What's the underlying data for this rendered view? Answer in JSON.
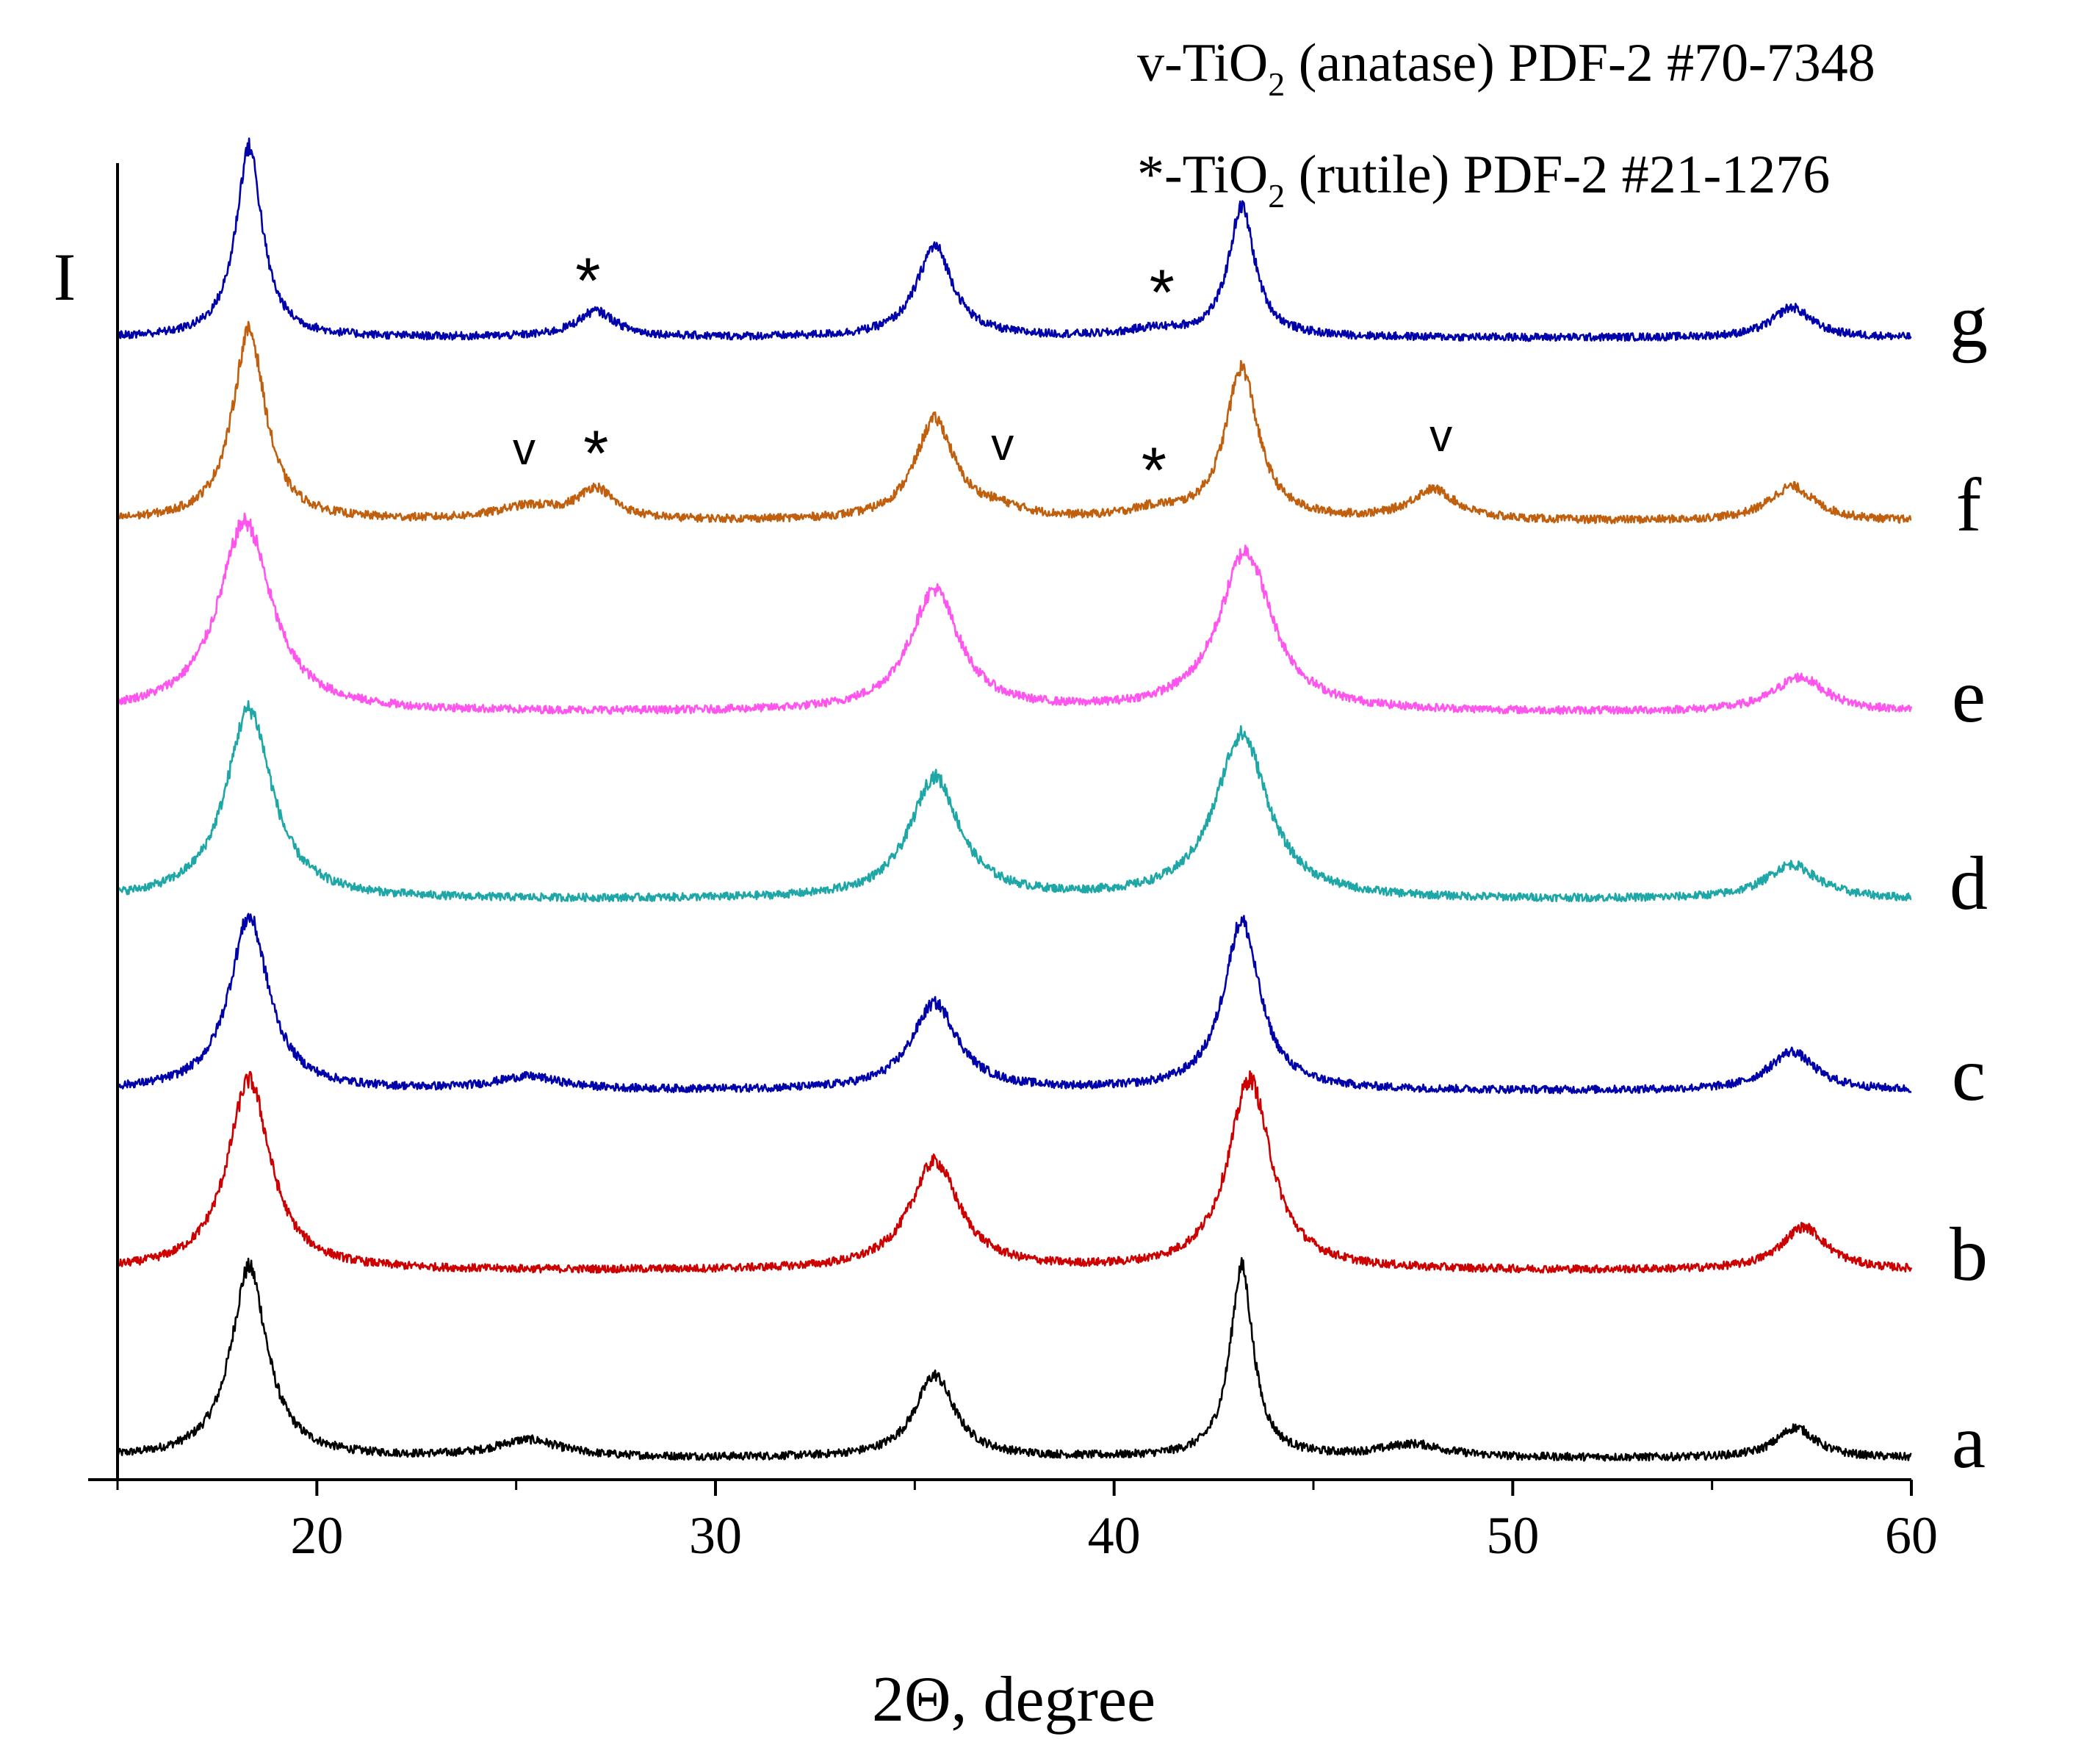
{
  "chart_data": {
    "type": "line",
    "title": "",
    "xlabel": "2Θ, degree",
    "ylabel": "I",
    "xlim": [
      15,
      60
    ],
    "xticks": [
      20,
      30,
      40,
      50,
      60
    ],
    "grid": false,
    "legend_lines": [
      {
        "prefix": "v-TiO",
        "sub": "2",
        "suffix": " (anatase) PDF-2 #70-7348"
      },
      {
        "prefix": "*-TiO",
        "sub": "2",
        "suffix": " (rutile) PDF-2 #21-1276"
      }
    ],
    "series": [
      {
        "name": "a",
        "color": "#000000",
        "baseline": 1.0,
        "noise": 0.045,
        "peaks": [
          [
            18.3,
            2.2,
            0.55
          ],
          [
            25.3,
            0.2,
            1.0
          ],
          [
            35.5,
            0.95,
            0.6
          ],
          [
            43.2,
            2.2,
            0.35
          ],
          [
            47.5,
            0.15,
            1.0
          ],
          [
            57.1,
            0.35,
            0.6
          ]
        ]
      },
      {
        "name": "b",
        "color": "#cc0000",
        "baseline": 1.0,
        "noise": 0.045,
        "peaks": [
          [
            18.3,
            2.2,
            0.65
          ],
          [
            35.5,
            1.25,
            0.75
          ],
          [
            43.4,
            2.2,
            0.65
          ],
          [
            57.3,
            0.5,
            0.7
          ]
        ]
      },
      {
        "name": "c",
        "color": "#0000aa",
        "baseline": 1.0,
        "noise": 0.045,
        "peaks": [
          [
            18.3,
            2.0,
            0.6
          ],
          [
            25.3,
            0.15,
            1.0
          ],
          [
            35.5,
            1.0,
            0.7
          ],
          [
            43.2,
            1.95,
            0.55
          ],
          [
            57.0,
            0.45,
            0.7
          ]
        ]
      },
      {
        "name": "d",
        "color": "#1fa7a7",
        "baseline": 1.0,
        "noise": 0.045,
        "peaks": [
          [
            18.3,
            2.2,
            0.7
          ],
          [
            35.5,
            1.4,
            0.75
          ],
          [
            43.2,
            1.9,
            0.8
          ],
          [
            57.0,
            0.4,
            0.8
          ]
        ]
      },
      {
        "name": "e",
        "color": "#ff55ee",
        "baseline": 1.0,
        "noise": 0.045,
        "peaks": [
          [
            18.2,
            2.2,
            0.8
          ],
          [
            35.5,
            1.4,
            0.75
          ],
          [
            43.3,
            1.85,
            0.8
          ],
          [
            57.2,
            0.4,
            0.8
          ]
        ]
      },
      {
        "name": "f",
        "color": "#c0600f",
        "baseline": 1.0,
        "noise": 0.045,
        "peaks": [
          [
            18.3,
            2.2,
            0.5
          ],
          [
            25.3,
            0.15,
            1.0
          ],
          [
            27.0,
            0.35,
            0.55
          ],
          [
            35.5,
            1.15,
            0.6
          ],
          [
            37.1,
            0.1,
            0.8
          ],
          [
            41.0,
            0.1,
            0.8
          ],
          [
            43.2,
            1.75,
            0.5
          ],
          [
            48.0,
            0.35,
            0.7
          ],
          [
            57.0,
            0.4,
            0.7
          ]
        ]
      },
      {
        "name": "g",
        "color": "#0000aa",
        "baseline": 1.0,
        "noise": 0.045,
        "peaks": [
          [
            18.3,
            2.2,
            0.4
          ],
          [
            27.0,
            0.3,
            0.6
          ],
          [
            35.5,
            1.05,
            0.55
          ],
          [
            41.0,
            0.08,
            0.8
          ],
          [
            43.2,
            1.5,
            0.4
          ],
          [
            57.0,
            0.35,
            0.6
          ]
        ]
      }
    ],
    "annotations": [
      {
        "series": "g",
        "text": "*",
        "x": 26.8
      },
      {
        "series": "g",
        "text": "*",
        "x": 41.2
      },
      {
        "series": "f",
        "text": "v",
        "x": 25.2
      },
      {
        "series": "f",
        "text": "*",
        "x": 27.0
      },
      {
        "series": "f",
        "text": "v",
        "x": 37.2
      },
      {
        "series": "f",
        "text": "*",
        "x": 41.0
      },
      {
        "series": "f",
        "text": "v",
        "x": 48.2
      }
    ]
  }
}
